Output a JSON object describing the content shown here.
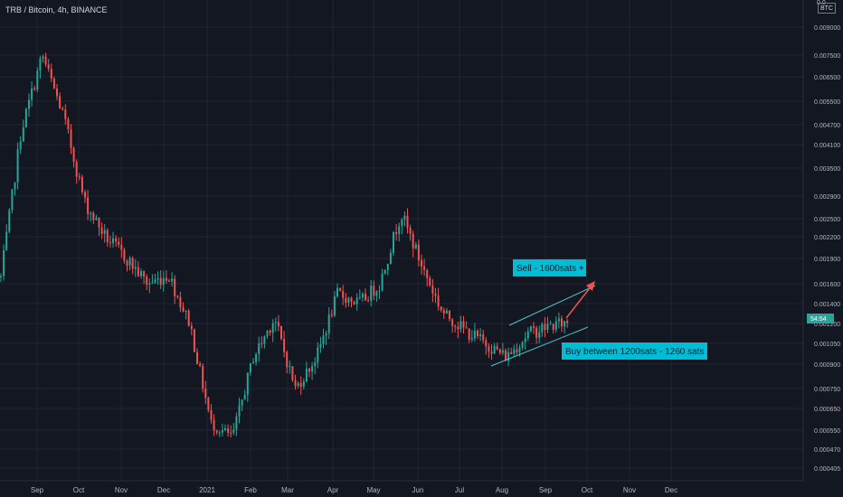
{
  "header": {
    "symbol": "TRB / Bitcoin, 4h, BINANCE",
    "currency": "BTC",
    "top_price_fragment": "0.0"
  },
  "colors": {
    "background": "#131722",
    "grid": "#1f2433",
    "up": "#26a69a",
    "down": "#ef5350",
    "text": "#b2b5be",
    "annotation_bg": "#00bcd4",
    "annotation_text": "#0b1e2a",
    "channel": "#4fc3c7",
    "arrow": "#ef5350",
    "price_badge": "#26a69a"
  },
  "chart_data": {
    "type": "candlestick",
    "x_ticks": [
      "Sep",
      "Oct",
      "Nov",
      "Dec",
      "2021",
      "Feb",
      "Mar",
      "Apr",
      "May",
      "Jun",
      "Jul",
      "Aug",
      "Sep",
      "Oct",
      "Nov",
      "Dec"
    ],
    "y_ticks": [
      "0.009000",
      "0.007500",
      "0.006500",
      "0.005500",
      "0.004700",
      "0.004100",
      "0.003500",
      "0.002900",
      "0.002500",
      "0.002200",
      "0.001900",
      "0.001600",
      "0.001400",
      "0.001200",
      "0.001050",
      "0.000900",
      "0.000750",
      "0.000650",
      "0.000550",
      "0.000470",
      "0.000405"
    ],
    "y_scale": "log",
    "last_price_label": "54:54",
    "trend": [
      [
        "Sep",
        0.0016
      ],
      [
        "Sep",
        0.0045
      ],
      [
        "Sep",
        0.0075
      ],
      [
        "Sep",
        0.005
      ],
      [
        "Oct",
        0.0028
      ],
      [
        "Oct",
        0.0022
      ],
      [
        "Nov",
        0.0019
      ],
      [
        "Nov",
        0.0016
      ],
      [
        "Dec",
        0.0017
      ],
      [
        "Dec",
        0.0012
      ],
      [
        "2021",
        0.00058
      ],
      [
        "2021",
        0.00052
      ],
      [
        "Feb",
        0.00095
      ],
      [
        "Feb",
        0.00125
      ],
      [
        "Mar",
        0.00075
      ],
      [
        "Mar",
        0.00095
      ],
      [
        "Apr",
        0.0015
      ],
      [
        "Apr",
        0.0014
      ],
      [
        "May",
        0.0016
      ],
      [
        "May",
        0.0026
      ],
      [
        "Jun",
        0.0018
      ],
      [
        "Jun",
        0.0013
      ],
      [
        "Jul",
        0.00115
      ],
      [
        "Jul",
        0.00105
      ],
      [
        "Aug",
        0.00095
      ],
      [
        "Aug",
        0.00112
      ],
      [
        "Sep",
        0.00118
      ],
      [
        "Sep",
        0.00122
      ]
    ],
    "annotations": [
      {
        "text": "Sell - 1600sats +"
      },
      {
        "text": "Buy between 1200sats - 1260 sats"
      }
    ]
  }
}
